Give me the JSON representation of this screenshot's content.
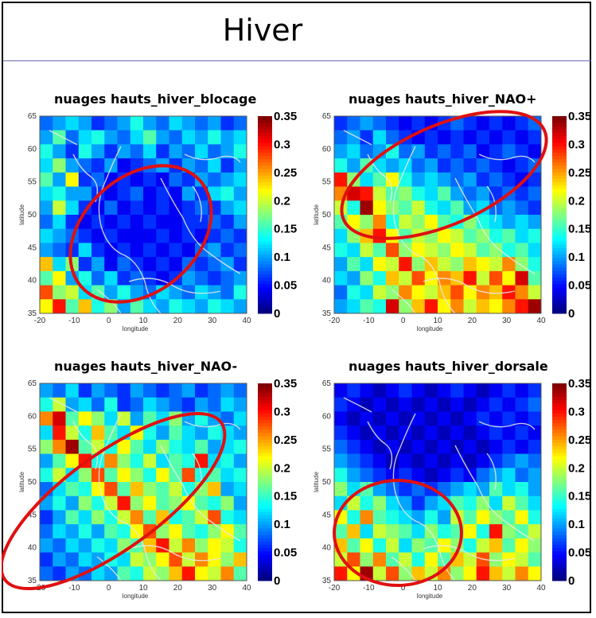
{
  "slide": {
    "title": "Hiver"
  },
  "chart_data": [
    {
      "type": "heatmap",
      "title": "nuages hauts_hiver_blocage",
      "xlabel": "longitude",
      "ylabel": "latitude",
      "xlim": [
        -20,
        40
      ],
      "ylim": [
        35,
        65
      ],
      "x_ticks": [
        -20,
        -10,
        0,
        10,
        20,
        30,
        40
      ],
      "y_ticks": [
        35,
        40,
        45,
        50,
        55,
        60,
        65
      ],
      "colorbar_ticks": [
        0,
        0.05,
        0.1,
        0.15,
        0.2,
        0.25,
        0.3,
        0.35
      ],
      "colorbar_tick_labels": [
        "0",
        "0.05",
        "0.1",
        "0.15",
        "0.2",
        "0.25",
        "0.3",
        "0.35"
      ],
      "colormap": "jet",
      "clim": [
        0,
        0.35
      ],
      "annotation": {
        "shape": "ellipse",
        "color": "#e01010"
      },
      "grid": [
        [
          0.08,
          0.1,
          0.12,
          0.1,
          0.06,
          0.08,
          0.1,
          0.14,
          0.1,
          0.08,
          0.12,
          0.1,
          0.08,
          0.1,
          0.06,
          0.08
        ],
        [
          0.1,
          0.16,
          0.08,
          0.12,
          0.14,
          0.1,
          0.08,
          0.12,
          0.16,
          0.1,
          0.08,
          0.12,
          0.1,
          0.14,
          0.1,
          0.12
        ],
        [
          0.14,
          0.1,
          0.06,
          0.14,
          0.1,
          0.06,
          0.1,
          0.08,
          0.12,
          0.06,
          0.1,
          0.08,
          0.12,
          0.08,
          0.1,
          0.14
        ],
        [
          0.12,
          0.18,
          0.1,
          0.08,
          0.06,
          0.1,
          0.04,
          0.06,
          0.08,
          0.1,
          0.06,
          0.1,
          0.08,
          0.12,
          0.06,
          0.1
        ],
        [
          0.16,
          0.1,
          0.22,
          0.06,
          0.08,
          0.04,
          0.06,
          0.04,
          0.06,
          0.04,
          0.08,
          0.06,
          0.1,
          0.08,
          0.1,
          0.12
        ],
        [
          0.12,
          0.14,
          0.1,
          0.1,
          0.06,
          0.04,
          0.06,
          0.08,
          0.04,
          0.06,
          0.04,
          0.1,
          0.06,
          0.12,
          0.14,
          0.1
        ],
        [
          0.1,
          0.2,
          0.12,
          0.06,
          0.04,
          0.08,
          0.04,
          0.06,
          0.04,
          0.06,
          0.04,
          0.06,
          0.08,
          0.06,
          0.1,
          0.12
        ],
        [
          0.08,
          0.12,
          0.06,
          0.04,
          0.06,
          0.04,
          0.06,
          0.04,
          0.06,
          0.04,
          0.04,
          0.06,
          0.06,
          0.08,
          0.06,
          0.1
        ],
        [
          0.12,
          0.1,
          0.08,
          0.06,
          0.04,
          0.06,
          0.04,
          0.04,
          0.04,
          0.06,
          0.04,
          0.06,
          0.04,
          0.06,
          0.08,
          0.06
        ],
        [
          0.1,
          0.08,
          0.06,
          0.12,
          0.06,
          0.04,
          0.06,
          0.04,
          0.06,
          0.04,
          0.06,
          0.04,
          0.08,
          0.1,
          0.06,
          0.08
        ],
        [
          0.24,
          0.12,
          0.18,
          0.06,
          0.1,
          0.04,
          0.08,
          0.06,
          0.04,
          0.06,
          0.04,
          0.08,
          0.06,
          0.08,
          0.1,
          0.06
        ],
        [
          0.16,
          0.22,
          0.1,
          0.14,
          0.08,
          0.12,
          0.06,
          0.08,
          0.06,
          0.04,
          0.06,
          0.1,
          0.08,
          0.06,
          0.08,
          0.1
        ],
        [
          0.28,
          0.18,
          0.2,
          0.12,
          0.16,
          0.1,
          0.14,
          0.1,
          0.08,
          0.12,
          0.1,
          0.08,
          0.12,
          0.1,
          0.08,
          0.14
        ],
        [
          0.22,
          0.3,
          0.16,
          0.24,
          0.14,
          0.18,
          0.1,
          0.16,
          0.12,
          0.1,
          0.14,
          0.12,
          0.1,
          0.14,
          0.12,
          0.1
        ]
      ]
    },
    {
      "type": "heatmap",
      "title": "nuages hauts_hiver_NAO+",
      "xlabel": "longitude",
      "ylabel": "latitude",
      "xlim": [
        -20,
        40
      ],
      "ylim": [
        35,
        65
      ],
      "x_ticks": [
        -20,
        -10,
        0,
        10,
        20,
        30,
        40
      ],
      "y_ticks": [
        35,
        40,
        45,
        50,
        55,
        60,
        65
      ],
      "colorbar_ticks": [
        0,
        0.05,
        0.1,
        0.15,
        0.2,
        0.25,
        0.3,
        0.35
      ],
      "colorbar_tick_labels": [
        "0",
        "0.05",
        "0.1",
        "0.15",
        "0.2",
        "0.25",
        "0.3",
        "0.35"
      ],
      "colormap": "jet",
      "clim": [
        0,
        0.35
      ],
      "annotation": {
        "shape": "ellipse",
        "color": "#e01010"
      },
      "grid": [
        [
          0.06,
          0.08,
          0.1,
          0.08,
          0.06,
          0.04,
          0.06,
          0.04,
          0.06,
          0.08,
          0.06,
          0.04,
          0.06,
          0.04,
          0.06,
          0.08
        ],
        [
          0.08,
          0.1,
          0.06,
          0.12,
          0.08,
          0.06,
          0.04,
          0.06,
          0.04,
          0.06,
          0.04,
          0.06,
          0.04,
          0.06,
          0.04,
          0.06
        ],
        [
          0.1,
          0.12,
          0.08,
          0.1,
          0.14,
          0.08,
          0.1,
          0.06,
          0.08,
          0.06,
          0.08,
          0.04,
          0.06,
          0.08,
          0.06,
          0.04
        ],
        [
          0.14,
          0.1,
          0.16,
          0.12,
          0.1,
          0.12,
          0.08,
          0.1,
          0.06,
          0.08,
          0.06,
          0.08,
          0.06,
          0.04,
          0.06,
          0.08
        ],
        [
          0.3,
          0.18,
          0.12,
          0.16,
          0.22,
          0.14,
          0.1,
          0.12,
          0.1,
          0.08,
          0.1,
          0.06,
          0.08,
          0.06,
          0.04,
          0.06
        ],
        [
          0.26,
          0.32,
          0.3,
          0.2,
          0.16,
          0.18,
          0.14,
          0.12,
          0.16,
          0.1,
          0.08,
          0.1,
          0.06,
          0.08,
          0.06,
          0.08
        ],
        [
          0.2,
          0.14,
          0.34,
          0.22,
          0.18,
          0.16,
          0.2,
          0.14,
          0.12,
          0.16,
          0.1,
          0.12,
          0.08,
          0.1,
          0.08,
          0.06
        ],
        [
          0.16,
          0.22,
          0.18,
          0.26,
          0.14,
          0.2,
          0.18,
          0.22,
          0.16,
          0.14,
          0.18,
          0.14,
          0.12,
          0.1,
          0.12,
          0.1
        ],
        [
          0.12,
          0.18,
          0.24,
          0.3,
          0.22,
          0.16,
          0.2,
          0.18,
          0.22,
          0.2,
          0.16,
          0.18,
          0.14,
          0.16,
          0.12,
          0.14
        ],
        [
          0.14,
          0.12,
          0.2,
          0.16,
          0.28,
          0.18,
          0.22,
          0.2,
          0.18,
          0.22,
          0.2,
          0.16,
          0.18,
          0.14,
          0.16,
          0.12
        ],
        [
          0.1,
          0.16,
          0.12,
          0.22,
          0.2,
          0.3,
          0.18,
          0.24,
          0.2,
          0.18,
          0.24,
          0.22,
          0.2,
          0.26,
          0.18,
          0.14
        ],
        [
          0.12,
          0.1,
          0.18,
          0.14,
          0.24,
          0.2,
          0.28,
          0.22,
          0.26,
          0.24,
          0.3,
          0.2,
          0.28,
          0.22,
          0.32,
          0.16
        ],
        [
          0.08,
          0.14,
          0.12,
          0.2,
          0.18,
          0.26,
          0.22,
          0.2,
          0.24,
          0.28,
          0.22,
          0.26,
          0.24,
          0.3,
          0.26,
          0.2
        ],
        [
          0.1,
          0.12,
          0.16,
          0.14,
          0.32,
          0.18,
          0.24,
          0.3,
          0.22,
          0.26,
          0.2,
          0.24,
          0.22,
          0.26,
          0.3,
          0.34
        ]
      ]
    },
    {
      "type": "heatmap",
      "title": "nuages hauts_hiver_NAO-",
      "xlabel": "longitude",
      "ylabel": "latitude",
      "xlim": [
        -20,
        40
      ],
      "ylim": [
        35,
        65
      ],
      "x_ticks": [
        -20,
        -10,
        0,
        10,
        20,
        30,
        40
      ],
      "y_ticks": [
        35,
        40,
        45,
        50,
        55,
        60,
        65
      ],
      "colorbar_ticks": [
        0,
        0.05,
        0.1,
        0.15,
        0.2,
        0.25,
        0.3,
        0.35
      ],
      "colorbar_tick_labels": [
        "0",
        "0.05",
        "0.1",
        "0.15",
        "0.2",
        "0.25",
        "0.3",
        "0.35"
      ],
      "colormap": "jet",
      "clim": [
        0,
        0.35
      ],
      "annotation": {
        "shape": "ellipse",
        "color": "#e01010"
      },
      "grid": [
        [
          0.1,
          0.08,
          0.12,
          0.06,
          0.1,
          0.08,
          0.06,
          0.1,
          0.08,
          0.06,
          0.08,
          0.1,
          0.06,
          0.08,
          0.1,
          0.08
        ],
        [
          0.14,
          0.2,
          0.1,
          0.12,
          0.08,
          0.14,
          0.06,
          0.08,
          0.12,
          0.1,
          0.08,
          0.06,
          0.1,
          0.08,
          0.12,
          0.1
        ],
        [
          0.26,
          0.32,
          0.16,
          0.22,
          0.18,
          0.12,
          0.2,
          0.1,
          0.16,
          0.12,
          0.18,
          0.1,
          0.14,
          0.1,
          0.08,
          0.12
        ],
        [
          0.12,
          0.3,
          0.2,
          0.14,
          0.24,
          0.16,
          0.12,
          0.22,
          0.14,
          0.1,
          0.16,
          0.12,
          0.1,
          0.14,
          0.12,
          0.1
        ],
        [
          0.18,
          0.26,
          0.34,
          0.16,
          0.2,
          0.14,
          0.22,
          0.16,
          0.12,
          0.18,
          0.14,
          0.12,
          0.16,
          0.1,
          0.12,
          0.14
        ],
        [
          0.1,
          0.16,
          0.22,
          0.3,
          0.14,
          0.26,
          0.18,
          0.14,
          0.2,
          0.12,
          0.16,
          0.14,
          0.3,
          0.12,
          0.14,
          0.1
        ],
        [
          0.14,
          0.2,
          0.12,
          0.18,
          0.28,
          0.16,
          0.22,
          0.18,
          0.14,
          0.22,
          0.16,
          0.28,
          0.14,
          0.16,
          0.12,
          0.14
        ],
        [
          0.08,
          0.12,
          0.16,
          0.14,
          0.22,
          0.28,
          0.16,
          0.24,
          0.18,
          0.16,
          0.2,
          0.14,
          0.18,
          0.24,
          0.1,
          0.12
        ],
        [
          0.1,
          0.14,
          0.1,
          0.18,
          0.14,
          0.2,
          0.3,
          0.18,
          0.22,
          0.16,
          0.18,
          0.22,
          0.16,
          0.14,
          0.18,
          0.1
        ],
        [
          0.06,
          0.1,
          0.16,
          0.12,
          0.18,
          0.14,
          0.2,
          0.26,
          0.16,
          0.24,
          0.14,
          0.16,
          0.2,
          0.28,
          0.14,
          0.12
        ],
        [
          0.08,
          0.12,
          0.1,
          0.14,
          0.1,
          0.16,
          0.14,
          0.22,
          0.28,
          0.18,
          0.22,
          0.16,
          0.14,
          0.18,
          0.22,
          0.16
        ],
        [
          0.1,
          0.08,
          0.12,
          0.1,
          0.14,
          0.12,
          0.18,
          0.16,
          0.24,
          0.3,
          0.2,
          0.26,
          0.18,
          0.22,
          0.2,
          0.14
        ],
        [
          0.06,
          0.1,
          0.08,
          0.12,
          0.1,
          0.14,
          0.12,
          0.2,
          0.18,
          0.22,
          0.28,
          0.2,
          0.26,
          0.22,
          0.18,
          0.24
        ],
        [
          0.08,
          0.06,
          0.1,
          0.08,
          0.12,
          0.1,
          0.16,
          0.14,
          0.2,
          0.18,
          0.24,
          0.3,
          0.22,
          0.2,
          0.26,
          0.16
        ]
      ]
    },
    {
      "type": "heatmap",
      "title": "nuages hauts_hiver_dorsale",
      "xlabel": "longitude",
      "ylabel": "latitude",
      "xlim": [
        -20,
        40
      ],
      "ylim": [
        35,
        65
      ],
      "x_ticks": [
        -20,
        -10,
        0,
        10,
        20,
        30,
        40
      ],
      "y_ticks": [
        35,
        40,
        45,
        50,
        55,
        60,
        65
      ],
      "colorbar_ticks": [
        0,
        0.05,
        0.1,
        0.15,
        0.2,
        0.25,
        0.3,
        0.35
      ],
      "colorbar_tick_labels": [
        "0",
        "0.05",
        "0.1",
        "0.15",
        "0.2",
        "0.25",
        "0.3",
        "0.35"
      ],
      "colormap": "jet",
      "clim": [
        0,
        0.35
      ],
      "annotation": {
        "shape": "ellipse",
        "color": "#e01010"
      },
      "grid": [
        [
          0.04,
          0.06,
          0.04,
          0.02,
          0.04,
          0.06,
          0.04,
          0.02,
          0.04,
          0.06,
          0.04,
          0.02,
          0.04,
          0.06,
          0.04,
          0.06
        ],
        [
          0.06,
          0.04,
          0.02,
          0.04,
          0.02,
          0.04,
          0.02,
          0.04,
          0.02,
          0.04,
          0.02,
          0.04,
          0.06,
          0.04,
          0.06,
          0.08
        ],
        [
          0.04,
          0.02,
          0.04,
          0.02,
          0.04,
          0.02,
          0.04,
          0.02,
          0.04,
          0.02,
          0.04,
          0.06,
          0.04,
          0.06,
          0.04,
          0.06
        ],
        [
          0.06,
          0.04,
          0.02,
          0.04,
          0.02,
          0.04,
          0.02,
          0.04,
          0.02,
          0.04,
          0.02,
          0.04,
          0.06,
          0.04,
          0.06,
          0.04
        ],
        [
          0.08,
          0.06,
          0.04,
          0.02,
          0.04,
          0.02,
          0.04,
          0.02,
          0.04,
          0.02,
          0.04,
          0.02,
          0.04,
          0.06,
          0.04,
          0.06
        ],
        [
          0.1,
          0.08,
          0.06,
          0.04,
          0.02,
          0.04,
          0.02,
          0.04,
          0.02,
          0.04,
          0.02,
          0.04,
          0.06,
          0.08,
          0.1,
          0.08
        ],
        [
          0.14,
          0.1,
          0.08,
          0.06,
          0.04,
          0.06,
          0.04,
          0.02,
          0.04,
          0.06,
          0.04,
          0.08,
          0.1,
          0.12,
          0.08,
          0.1
        ],
        [
          0.18,
          0.12,
          0.16,
          0.1,
          0.08,
          0.06,
          0.08,
          0.06,
          0.08,
          0.1,
          0.12,
          0.1,
          0.16,
          0.12,
          0.14,
          0.1
        ],
        [
          0.12,
          0.2,
          0.14,
          0.18,
          0.12,
          0.1,
          0.06,
          0.1,
          0.12,
          0.16,
          0.14,
          0.18,
          0.12,
          0.2,
          0.16,
          0.12
        ],
        [
          0.22,
          0.14,
          0.26,
          0.16,
          0.14,
          0.12,
          0.1,
          0.14,
          0.1,
          0.2,
          0.16,
          0.22,
          0.18,
          0.16,
          0.22,
          0.14
        ],
        [
          0.16,
          0.24,
          0.12,
          0.2,
          0.18,
          0.16,
          0.12,
          0.18,
          0.14,
          0.16,
          0.22,
          0.14,
          0.3,
          0.18,
          0.16,
          0.2
        ],
        [
          0.24,
          0.16,
          0.22,
          0.14,
          0.2,
          0.12,
          0.18,
          0.16,
          0.22,
          0.18,
          0.14,
          0.2,
          0.24,
          0.16,
          0.22,
          0.18
        ],
        [
          0.2,
          0.28,
          0.18,
          0.26,
          0.16,
          0.2,
          0.14,
          0.22,
          0.16,
          0.24,
          0.2,
          0.28,
          0.18,
          0.22,
          0.2,
          0.16
        ],
        [
          0.3,
          0.22,
          0.34,
          0.2,
          0.28,
          0.18,
          0.24,
          0.2,
          0.26,
          0.18,
          0.22,
          0.3,
          0.24,
          0.2,
          0.26,
          0.22
        ]
      ]
    }
  ]
}
